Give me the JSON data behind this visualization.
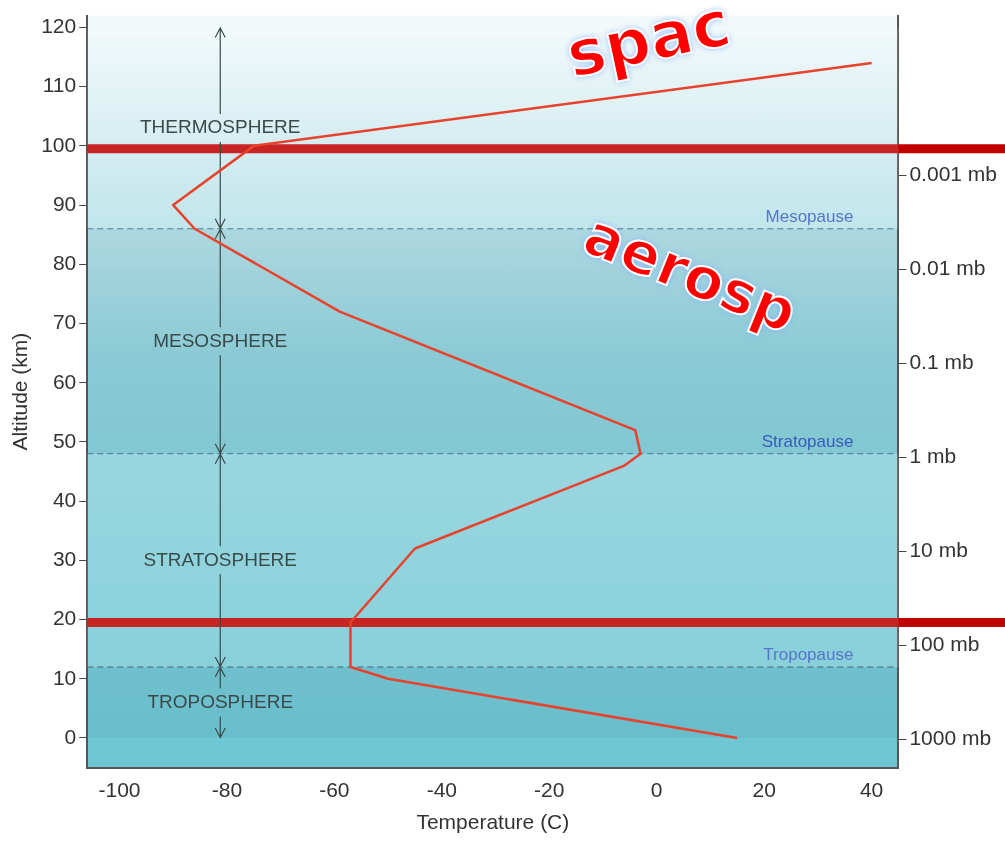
{
  "chart_data": {
    "type": "line",
    "xlabel": "Temperature (C)",
    "ylabel": "Altitude (km)",
    "series": [
      {
        "color": "#e8412c",
        "x": [
          15,
          -50,
          -57,
          -57,
          -45,
          -6,
          -3,
          -4,
          -59,
          -86,
          -90,
          -75,
          40
        ],
        "values": [
          0,
          10,
          12,
          19.5,
          32,
          46,
          48,
          52,
          72,
          86,
          90,
          100,
          114
        ]
      }
    ],
    "xlim": [
      -106,
      45
    ],
    "xticks": [
      -100,
      -80,
      -60,
      -40,
      -20,
      0,
      20,
      40
    ],
    "ylim": [
      -5,
      122
    ],
    "yticks": [
      0,
      10,
      20,
      30,
      40,
      50,
      60,
      70,
      80,
      90,
      100,
      110,
      120
    ],
    "y2lim": [
      2000,
      2e-05
    ],
    "y2ticks": [
      {
        "value": 1000,
        "label": "1000 mb"
      },
      {
        "value": 100,
        "label": "100 mb"
      },
      {
        "value": 10,
        "label": "10 mb"
      },
      {
        "value": 1,
        "label": "1 mb"
      },
      {
        "value": 0.1,
        "label": "0.1 mb"
      },
      {
        "value": 0.01,
        "label": "0.01 mb"
      },
      {
        "value": 0.001,
        "label": "0.001 mb"
      }
    ],
    "log": "y2",
    "ref_lines": [
      {
        "axis": "y",
        "value": 86,
        "label": "Mesopause",
        "color": "#4a6f8c",
        "line_style": "dashed"
      },
      {
        "axis": "y",
        "value": 48,
        "label": "Stratopause",
        "color": "#4a6f8c",
        "line_style": "dashed"
      },
      {
        "axis": "y",
        "value": 12,
        "label": "Tropopause",
        "color": "#4a6f8c",
        "line_style": "dashed"
      },
      {
        "axis": "y",
        "value": 99.5,
        "color": "#c00000",
        "line_style": "solid"
      },
      {
        "axis": "y",
        "value": 19.5,
        "color": "#c00000",
        "line_style": "solid"
      }
    ],
    "bands": [
      {
        "axis": "y",
        "from": 86,
        "to": 120,
        "label": "THERMOSPHERE"
      },
      {
        "axis": "y",
        "from": 48,
        "to": 86,
        "label": "MESOSPHERE"
      },
      {
        "axis": "y",
        "from": 12,
        "to": 48,
        "label": "STRATOSPHERE"
      },
      {
        "axis": "y",
        "from": 0,
        "to": 12,
        "label": "TROPOSPHERE"
      }
    ],
    "annotations": [
      "spac",
      "aerosp"
    ],
    "grid": false,
    "legend": false,
    "marker": "none",
    "line_style": "solid"
  }
}
